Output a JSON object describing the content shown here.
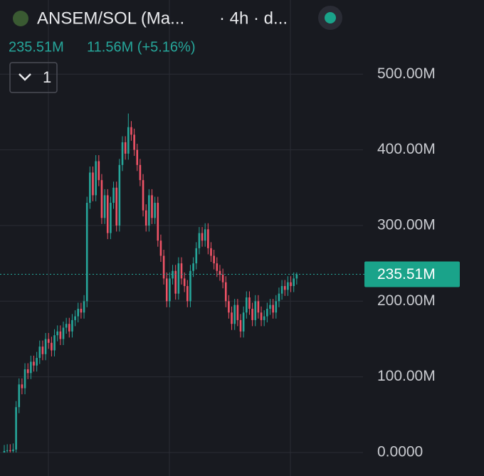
{
  "chart_data": {
    "type": "candlestick",
    "title": "ANSEM/SOL (Ma...",
    "subtitle": "· 4h · d...",
    "change": "11.56M (+5.16%)",
    "interval_count": "1",
    "last_price": {
      "value": 235.51,
      "label": "235.51M"
    },
    "up_color": "#26a69a",
    "down_color": "#ef5366",
    "ylim": [
      -31,
      598
    ],
    "yticks": [
      {
        "value": 0,
        "label": "0.0000"
      },
      {
        "value": 100,
        "label": "100.00M"
      },
      {
        "value": 200,
        "label": "200.00M"
      },
      {
        "value": 300,
        "label": "300.00M"
      },
      {
        "value": 400,
        "label": "400.00M"
      },
      {
        "value": 500,
        "label": "500.00M"
      }
    ],
    "grid": true,
    "open": [
      0,
      2,
      3,
      2,
      4,
      60,
      90,
      85,
      110,
      105,
      120,
      115,
      125,
      140,
      130,
      150,
      145,
      135,
      155,
      160,
      150,
      165,
      170,
      160,
      175,
      180,
      190,
      185,
      200,
      330,
      370,
      340,
      385,
      360,
      310,
      340,
      290,
      330,
      350,
      300,
      380,
      410,
      395,
      430,
      420,
      400,
      380,
      360,
      320,
      300,
      340,
      310,
      330,
      280,
      260,
      230,
      200,
      230,
      240,
      210,
      250,
      230,
      220,
      200,
      240,
      250,
      270,
      290,
      280,
      295,
      270,
      260,
      250,
      240,
      235,
      225,
      200,
      185,
      170,
      195,
      175,
      160,
      185,
      205,
      190,
      175,
      200,
      185,
      175,
      180,
      190,
      195,
      185,
      200,
      210,
      220,
      215,
      225,
      220,
      230
    ],
    "close": [
      2,
      3,
      2,
      4,
      60,
      90,
      85,
      110,
      105,
      120,
      115,
      125,
      140,
      130,
      150,
      145,
      135,
      155,
      160,
      150,
      165,
      170,
      160,
      175,
      180,
      190,
      185,
      200,
      330,
      370,
      340,
      385,
      360,
      310,
      340,
      290,
      330,
      350,
      300,
      380,
      410,
      395,
      430,
      420,
      400,
      380,
      360,
      320,
      300,
      340,
      310,
      330,
      280,
      260,
      230,
      200,
      230,
      240,
      210,
      250,
      230,
      220,
      200,
      240,
      250,
      270,
      290,
      280,
      295,
      270,
      260,
      250,
      240,
      235,
      225,
      200,
      185,
      170,
      195,
      175,
      160,
      185,
      205,
      190,
      175,
      200,
      185,
      175,
      180,
      190,
      195,
      185,
      200,
      210,
      220,
      215,
      225,
      220,
      230,
      235.51
    ],
    "high": [
      10,
      11,
      11,
      12,
      68,
      98,
      98,
      118,
      118,
      128,
      128,
      133,
      148,
      148,
      158,
      158,
      153,
      163,
      168,
      168,
      173,
      178,
      178,
      183,
      188,
      198,
      198,
      208,
      338,
      378,
      378,
      393,
      393,
      368,
      348,
      348,
      338,
      358,
      358,
      388,
      418,
      418,
      448,
      438,
      428,
      408,
      388,
      368,
      328,
      348,
      348,
      338,
      338,
      288,
      268,
      238,
      238,
      248,
      248,
      258,
      258,
      238,
      228,
      248,
      258,
      278,
      298,
      298,
      303,
      303,
      278,
      268,
      258,
      248,
      243,
      233,
      208,
      193,
      203,
      203,
      183,
      193,
      213,
      213,
      198,
      208,
      208,
      193,
      188,
      198,
      203,
      203,
      208,
      218,
      228,
      228,
      233,
      233,
      238,
      238
    ],
    "low": [
      0,
      0,
      0,
      0,
      0,
      52,
      77,
      77,
      97,
      97,
      107,
      107,
      117,
      122,
      122,
      137,
      127,
      127,
      147,
      142,
      142,
      157,
      152,
      152,
      167,
      172,
      177,
      177,
      192,
      322,
      332,
      332,
      352,
      302,
      302,
      282,
      282,
      322,
      292,
      292,
      372,
      387,
      387,
      412,
      392,
      372,
      352,
      312,
      292,
      292,
      302,
      302,
      272,
      252,
      222,
      192,
      192,
      222,
      202,
      202,
      222,
      212,
      192,
      192,
      232,
      242,
      262,
      272,
      272,
      262,
      252,
      242,
      232,
      227,
      217,
      192,
      177,
      162,
      162,
      167,
      152,
      152,
      177,
      182,
      167,
      167,
      177,
      167,
      167,
      172,
      182,
      177,
      177,
      192,
      202,
      207,
      207,
      212,
      212,
      222
    ]
  }
}
